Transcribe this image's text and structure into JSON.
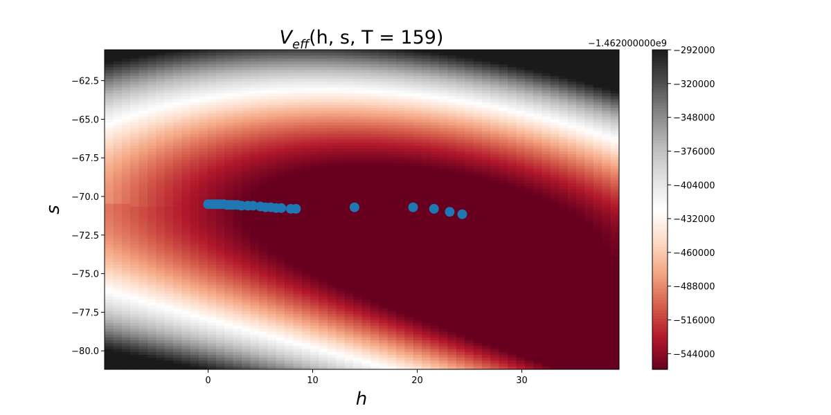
{
  "chart_data": {
    "type": "heatmap+scatter",
    "title": {
      "main": "V",
      "subscript": "eff",
      "rest": "(h, s, T = 159)"
    },
    "xlabel": "h",
    "ylabel": "s",
    "xlim": [
      -9.9,
      39.3
    ],
    "ylim": [
      -81.2,
      -60.5
    ],
    "xticks": [
      0,
      10,
      20,
      30
    ],
    "xtick_labels": [
      "0",
      "10",
      "20",
      "30"
    ],
    "yticks": [
      -62.5,
      -65.0,
      -67.5,
      -70.0,
      -72.5,
      -75.0,
      -77.5,
      -80.0
    ],
    "ytick_labels": [
      "−62.5",
      "−65.0",
      "−67.5",
      "−70.0",
      "−72.5",
      "−75.0",
      "−77.5",
      "−80.0"
    ],
    "colorbar": {
      "colormap": "RdGy",
      "offset_label": "−1.462000000e9",
      "range": [
        -557000,
        -292000
      ],
      "ticks": [
        -292000,
        -320000,
        -348000,
        -376000,
        -404000,
        -432000,
        -460000,
        -488000,
        -516000,
        -544000
      ],
      "tick_labels": [
        "−292000",
        "−320000",
        "−348000",
        "−376000",
        "−404000",
        "−432000",
        "−460000",
        "−488000",
        "−516000",
        "−544000"
      ]
    },
    "scatter": {
      "color": "#1f77b4",
      "points": [
        {
          "x": 0.0,
          "y": -70.5
        },
        {
          "x": 0.3,
          "y": -70.5
        },
        {
          "x": 0.6,
          "y": -70.5
        },
        {
          "x": 0.9,
          "y": -70.5
        },
        {
          "x": 1.2,
          "y": -70.5
        },
        {
          "x": 1.5,
          "y": -70.5
        },
        {
          "x": 1.8,
          "y": -70.55
        },
        {
          "x": 2.1,
          "y": -70.55
        },
        {
          "x": 2.4,
          "y": -70.55
        },
        {
          "x": 2.8,
          "y": -70.55
        },
        {
          "x": 3.2,
          "y": -70.6
        },
        {
          "x": 3.8,
          "y": -70.6
        },
        {
          "x": 4.3,
          "y": -70.6
        },
        {
          "x": 5.0,
          "y": -70.65
        },
        {
          "x": 5.5,
          "y": -70.7
        },
        {
          "x": 6.0,
          "y": -70.7
        },
        {
          "x": 6.5,
          "y": -70.75
        },
        {
          "x": 7.0,
          "y": -70.75
        },
        {
          "x": 7.9,
          "y": -70.8
        },
        {
          "x": 8.4,
          "y": -70.8
        },
        {
          "x": 14.0,
          "y": -70.7
        },
        {
          "x": 19.6,
          "y": -70.7
        },
        {
          "x": 21.6,
          "y": -70.8
        },
        {
          "x": 23.1,
          "y": -71.0
        },
        {
          "x": 24.3,
          "y": -71.15
        }
      ]
    },
    "field_model": {
      "comment": "potential surface colour field",
      "valley_center_s": -70.8,
      "valley_tilt_per_h": -0.04,
      "curvature_per_h2": -0.001
    }
  }
}
